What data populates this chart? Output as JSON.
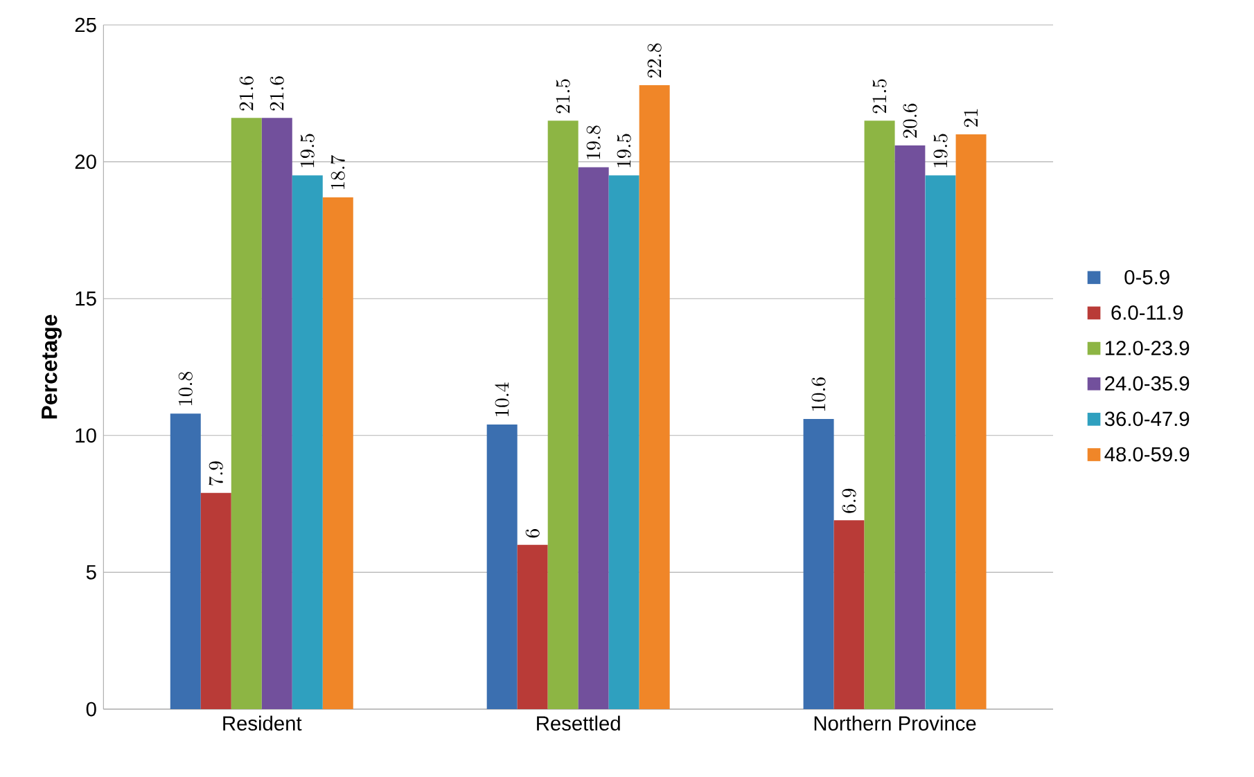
{
  "chart_data": {
    "type": "bar",
    "ylabel": "Percetage",
    "categories": [
      "Resident",
      "Resettled",
      "Northern Province"
    ],
    "series": [
      {
        "name": "0-5.9",
        "color": "#3b6fb0",
        "values": [
          10.8,
          10.4,
          10.6
        ]
      },
      {
        "name": "6.0-11.9",
        "color": "#b93b37",
        "values": [
          7.9,
          6,
          6.9
        ]
      },
      {
        "name": "12.0-23.9",
        "color": "#8db544",
        "values": [
          21.6,
          21.5,
          21.5
        ]
      },
      {
        "name": "24.0-35.9",
        "color": "#72509c",
        "values": [
          21.6,
          19.8,
          20.6
        ]
      },
      {
        "name": "36.0-47.9",
        "color": "#2fa0bf",
        "values": [
          19.5,
          19.5,
          19.5
        ]
      },
      {
        "name": "48.0-59.9",
        "color": "#f08628",
        "values": [
          18.7,
          22.8,
          21
        ]
      }
    ],
    "ylim": [
      0,
      25
    ],
    "yticks": [
      0,
      5,
      10,
      15,
      20,
      25
    ],
    "grid": "y",
    "legend": "right",
    "data_labels": true
  }
}
